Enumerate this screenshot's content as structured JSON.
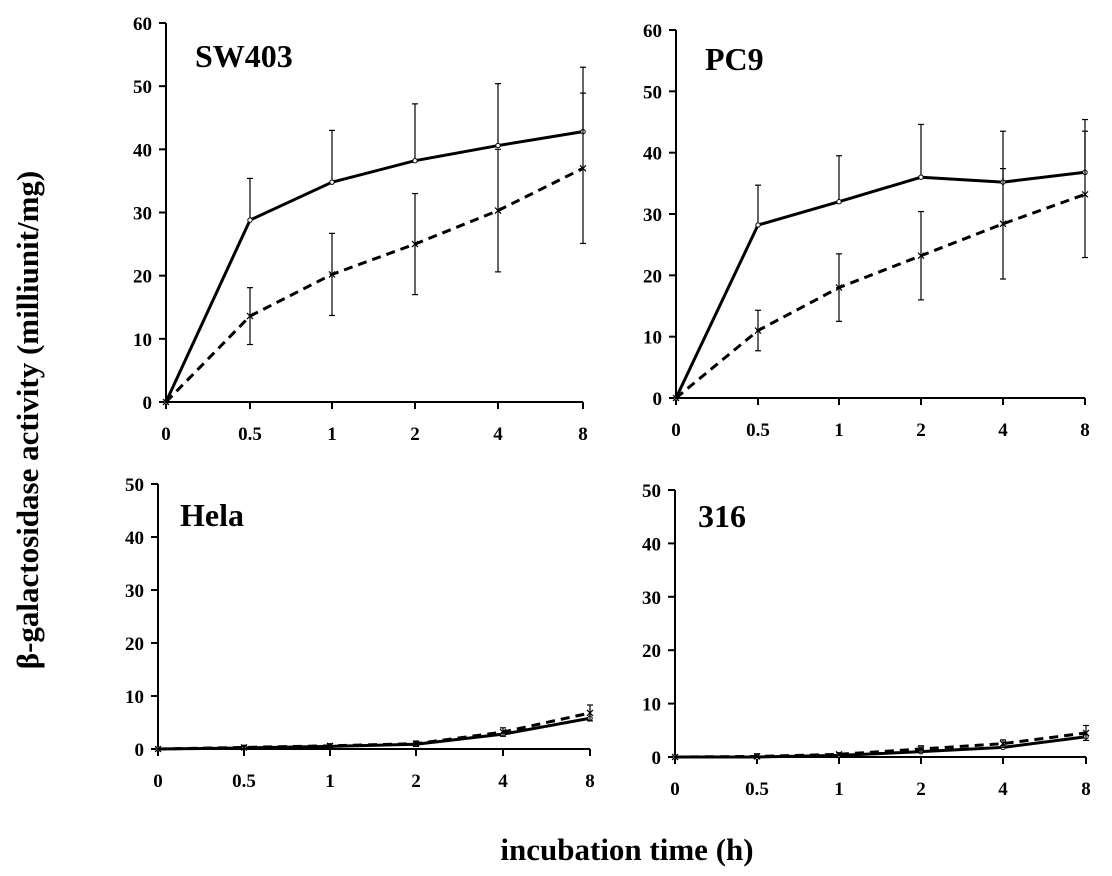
{
  "figure": {
    "ylabel": "β-galactosidase activity (milliunit/mg)",
    "xlabel": "incubation time (h)"
  },
  "chart_data": [
    {
      "type": "line",
      "title": "SW403",
      "categories": [
        "0",
        "0.5",
        "1",
        "2",
        "4",
        "8"
      ],
      "ylim": [
        0,
        60
      ],
      "yticks": [
        "0",
        "10",
        "20",
        "30",
        "40",
        "50",
        "60"
      ],
      "grid": false,
      "series": [
        {
          "style": "solid",
          "marker": "circle",
          "values": [
            0,
            28.8,
            34.8,
            38.2,
            40.6,
            42.8
          ],
          "errors": [
            0,
            6.6,
            8.2,
            9.0,
            9.8,
            10.2
          ]
        },
        {
          "style": "dashed",
          "marker": "x",
          "values": [
            0,
            13.6,
            20.2,
            25.0,
            30.3,
            37.0
          ],
          "errors": [
            0,
            4.5,
            6.5,
            8.0,
            9.7,
            11.9
          ]
        }
      ]
    },
    {
      "type": "line",
      "title": "PC9",
      "categories": [
        "0",
        "0.5",
        "1",
        "2",
        "4",
        "8"
      ],
      "ylim": [
        0,
        60
      ],
      "yticks": [
        "0",
        "10",
        "20",
        "30",
        "40",
        "50",
        "60"
      ],
      "grid": false,
      "series": [
        {
          "style": "solid",
          "marker": "circle",
          "values": [
            0,
            28.2,
            32.0,
            36.0,
            35.2,
            36.8
          ],
          "errors": [
            0,
            6.5,
            7.5,
            8.6,
            8.3,
            8.6
          ]
        },
        {
          "style": "dashed",
          "marker": "x",
          "values": [
            0,
            11.0,
            18.0,
            23.2,
            28.4,
            33.2
          ],
          "errors": [
            0,
            3.3,
            5.5,
            7.2,
            9.0,
            10.3
          ]
        }
      ]
    },
    {
      "type": "line",
      "title": "Hela",
      "categories": [
        "0",
        "0.5",
        "1",
        "2",
        "4",
        "8"
      ],
      "ylim": [
        0,
        50
      ],
      "yticks": [
        "0",
        "10",
        "20",
        "30",
        "40",
        "50"
      ],
      "grid": false,
      "series": [
        {
          "style": "solid",
          "marker": "circle",
          "values": [
            0,
            0.2,
            0.5,
            0.9,
            2.8,
            5.8
          ],
          "errors": [
            0,
            0,
            0,
            0,
            0,
            0
          ]
        },
        {
          "style": "dashed",
          "marker": "x",
          "values": [
            0,
            0.3,
            0.6,
            1.0,
            3.2,
            6.8
          ],
          "errors": [
            0,
            0.4,
            0.4,
            0.5,
            0.8,
            1.5
          ]
        }
      ]
    },
    {
      "type": "line",
      "title": "316",
      "categories": [
        "0",
        "0.5",
        "1",
        "2",
        "4",
        "8"
      ],
      "ylim": [
        0,
        50
      ],
      "yticks": [
        "0",
        "10",
        "20",
        "30",
        "40",
        "50"
      ],
      "grid": false,
      "series": [
        {
          "style": "solid",
          "marker": "circle",
          "values": [
            0,
            0,
            0.3,
            1.0,
            1.8,
            3.8
          ],
          "errors": [
            0,
            0,
            0,
            0,
            0,
            0
          ]
        },
        {
          "style": "dashed",
          "marker": "x",
          "values": [
            0,
            0.1,
            0.5,
            1.5,
            2.5,
            4.5
          ],
          "errors": [
            0,
            0.5,
            0.3,
            0.6,
            0.7,
            1.4
          ]
        }
      ]
    }
  ]
}
